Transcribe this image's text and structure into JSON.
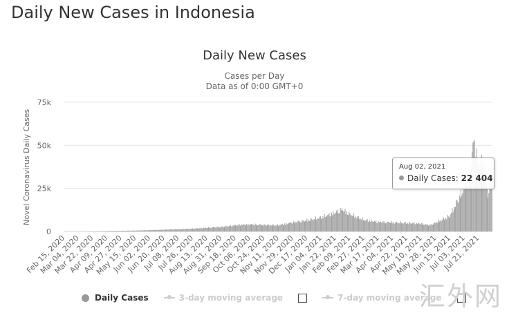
{
  "page": {
    "heading": "Daily New Cases in Indonesia"
  },
  "chart_data": {
    "type": "bar",
    "title": "Daily New Cases",
    "subtitle_line1": "Cases per Day",
    "subtitle_line2": "Data as of 0:00 GMT+0",
    "ylabel": "Novel Coronavirus Daily Cases",
    "xlabel": "",
    "ylim": [
      0,
      75000
    ],
    "y_ticks": [
      0,
      25000,
      50000,
      75000
    ],
    "y_tick_labels": [
      "0",
      "25k",
      "50k",
      "75k"
    ],
    "grid": true,
    "x_range": [
      "2020-02-15",
      "2021-08-07"
    ],
    "x_tick_labels": [
      "Feb 15, 2020",
      "Mar 04, 2020",
      "Mar 22, 2020",
      "Apr 09, 2020",
      "Apr 27, 2020",
      "May 15, 2020",
      "Jun 02, 2020",
      "Jun 20, 2020",
      "Jul 08, 2020",
      "Jul 26, 2020",
      "Aug 13, 2020",
      "Aug 31, 2020",
      "Sep 18, 2020",
      "Oct 06, 2020",
      "Oct 24, 2020",
      "Nov 11, 2020",
      "Nov 29, 2020",
      "Dec 17, 2020",
      "Jan 04, 2021",
      "Jan 22, 2021",
      "Feb 09, 2021",
      "Feb 27, 2021",
      "Mar 17, 2021",
      "Apr 04, 2021",
      "Apr 22, 2021",
      "May 10, 2021",
      "May 28, 2021",
      "Jun 15, 2021",
      "Jul 03, 2021",
      "Jul 21, 2021"
    ],
    "series": [
      {
        "name": "Daily Cases",
        "color": "#999999",
        "anchors": [
          [
            "2020-02-15",
            0
          ],
          [
            "2020-03-15",
            50
          ],
          [
            "2020-04-09",
            300
          ],
          [
            "2020-05-15",
            550
          ],
          [
            "2020-06-20",
            1100
          ],
          [
            "2020-07-26",
            1700
          ],
          [
            "2020-08-31",
            2800
          ],
          [
            "2020-09-18",
            3800
          ],
          [
            "2020-10-06",
            4300
          ],
          [
            "2020-10-24",
            4000
          ],
          [
            "2020-11-11",
            3800
          ],
          [
            "2020-11-29",
            5500
          ],
          [
            "2020-12-17",
            6800
          ],
          [
            "2021-01-04",
            8500
          ],
          [
            "2021-01-22",
            11500
          ],
          [
            "2021-01-30",
            13500
          ],
          [
            "2021-02-09",
            10500
          ],
          [
            "2021-02-27",
            7000
          ],
          [
            "2021-03-17",
            5800
          ],
          [
            "2021-04-04",
            5500
          ],
          [
            "2021-04-22",
            5200
          ],
          [
            "2021-05-10",
            4800
          ],
          [
            "2021-05-20",
            3800
          ],
          [
            "2021-05-28",
            5300
          ],
          [
            "2021-06-15",
            9500
          ],
          [
            "2021-06-26",
            20000
          ],
          [
            "2021-07-03",
            27000
          ],
          [
            "2021-07-10",
            35000
          ],
          [
            "2021-07-15",
            55000
          ],
          [
            "2021-07-21",
            40000
          ],
          [
            "2021-07-28",
            43000
          ],
          [
            "2021-08-02",
            22404
          ],
          [
            "2021-08-07",
            32000
          ]
        ]
      }
    ],
    "legend": [
      {
        "label": "Daily Cases",
        "active": true
      },
      {
        "label": "3-day moving average",
        "active": false
      },
      {
        "label": "7-day moving average",
        "active": false
      }
    ],
    "legend_position": "bottom",
    "tooltip": {
      "date": "Aug 02, 2021",
      "series": "Daily Cases",
      "value": "22 404"
    }
  },
  "watermark": {
    "text": "汇外网"
  }
}
